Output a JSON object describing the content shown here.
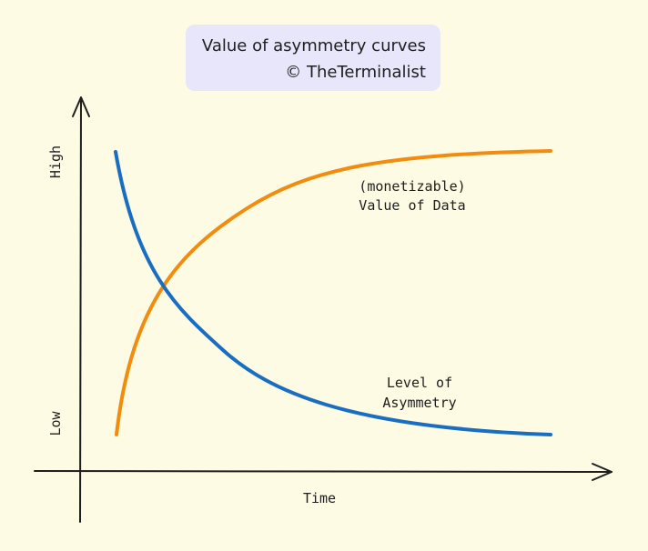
{
  "title": {
    "line1": "Value of asymmetry curves",
    "line2": "© TheTerminalist"
  },
  "axes": {
    "x_label": "Time",
    "y_high_label": "High",
    "y_low_label": "Low"
  },
  "curves": {
    "value": {
      "label_line1": "(monetizable)",
      "label_line2": "Value of Data",
      "color": "#f28c0f"
    },
    "asymmetry": {
      "label_line1": "Level of",
      "label_line2": "Asymmetry",
      "color": "#1a6ec2"
    }
  },
  "colors": {
    "background": "#fdfbe3",
    "title_box": "#e8e6fb",
    "axis": "#1e1e1e"
  }
}
